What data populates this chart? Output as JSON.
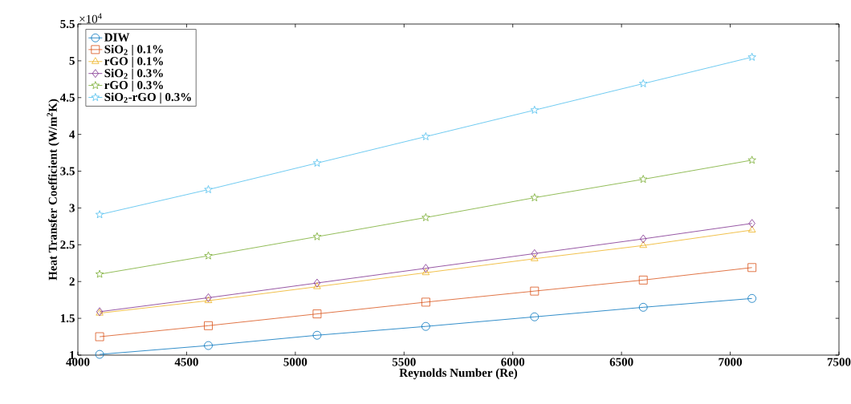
{
  "chart_data": {
    "type": "line",
    "xlabel": "Reynolds Number (Re)",
    "ylabel": "Heat Transfer Coefficient (W/m$^{2}$K)",
    "annotations": [
      "×10$^{4}$"
    ],
    "x": [
      4100,
      4600,
      5100,
      5600,
      6100,
      6600,
      7100
    ],
    "xlim": [
      4000,
      7500
    ],
    "xticks": [
      4000,
      4500,
      5000,
      5500,
      6000,
      6500,
      7000,
      7500
    ],
    "ylim": [
      1,
      5.5
    ],
    "yticks": [
      1,
      1.5,
      2,
      2.5,
      3,
      3.5,
      4,
      4.5,
      5,
      5.5
    ],
    "legend": "top left",
    "grid": false,
    "series": [
      {
        "name": "DIW",
        "color": "#0072bd",
        "marker": "circle",
        "values": [
          1.01,
          1.13,
          1.27,
          1.39,
          1.52,
          1.65,
          1.77
        ]
      },
      {
        "name": "SiO$_{2}$ | 0.1%",
        "color": "#d95319",
        "marker": "square",
        "values": [
          1.25,
          1.4,
          1.56,
          1.72,
          1.87,
          2.02,
          2.19
        ]
      },
      {
        "name": "rGO | 0.1%",
        "color": "#edb120",
        "marker": "triangle",
        "values": [
          1.57,
          1.74,
          1.93,
          2.12,
          2.31,
          2.49,
          2.7
        ]
      },
      {
        "name": "SiO$_{2}$ | 0.3%",
        "color": "#7e2f8e",
        "marker": "diamond",
        "values": [
          1.59,
          1.78,
          1.98,
          2.18,
          2.38,
          2.58,
          2.79
        ]
      },
      {
        "name": "rGO | 0.3%",
        "color": "#77ac30",
        "marker": "star",
        "values": [
          2.1,
          2.35,
          2.61,
          2.87,
          3.14,
          3.39,
          3.65
        ]
      },
      {
        "name": "SiO$_{2}$-rGO | 0.3%",
        "color": "#4dbeee",
        "marker": "star",
        "values": [
          2.91,
          3.25,
          3.61,
          3.97,
          4.33,
          4.69,
          5.05
        ]
      }
    ]
  }
}
